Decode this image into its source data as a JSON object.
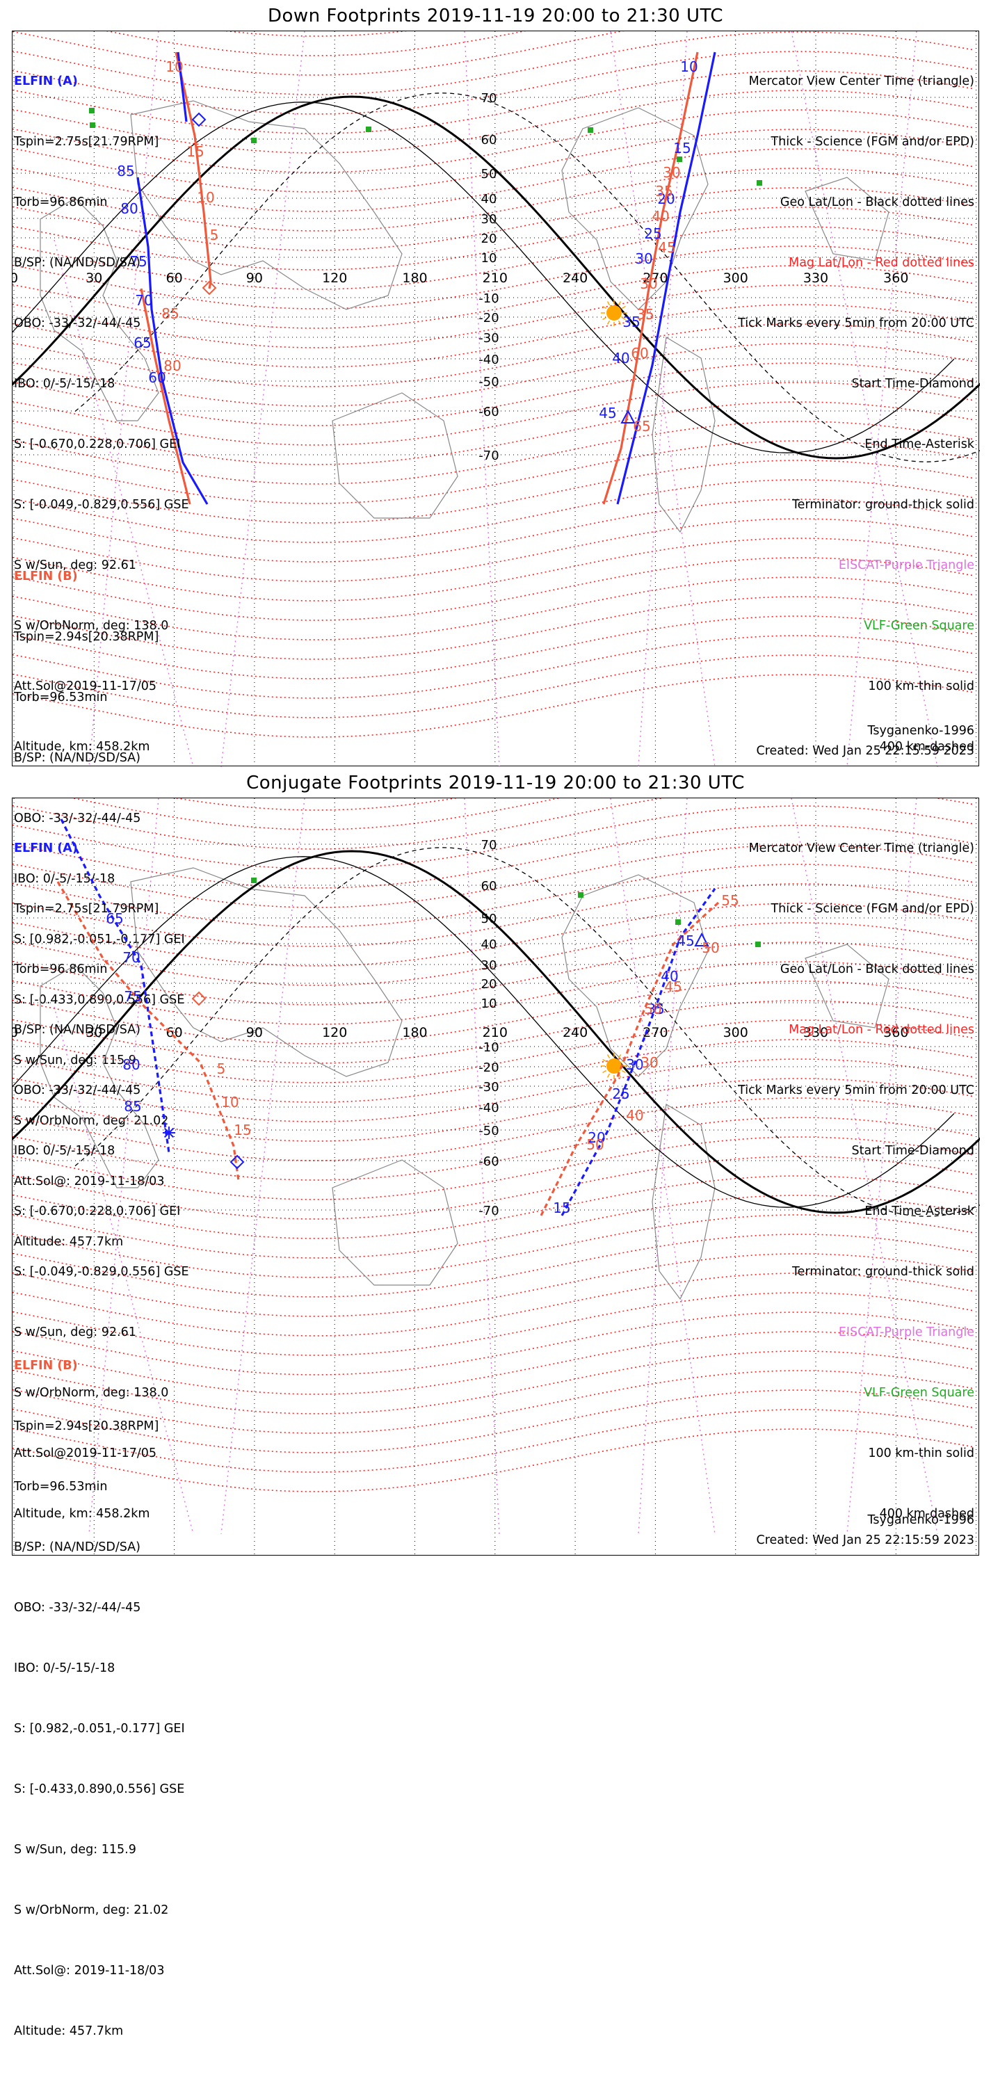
{
  "panels": [
    {
      "title": "Down Footprints 2019-11-19 20:00 to 21:30 UTC",
      "sc_a": {
        "name": "ELFIN (A)",
        "lines": [
          "Tspin=2.75s[21.79RPM]",
          "Torb=96.86min",
          "B/SP: (NA/ND/SD/SA)",
          "OBO: -33/-32/-44/-45",
          "IBO: 0/-5/-15/-18",
          "S: [-0.670,0.228,0.706] GEI",
          "S: [-0.049,-0.829,0.556] GSE",
          "S w/Sun, deg: 92.61",
          "S w/OrbNorm, deg: 138.0",
          "Att.Sol@2019-11-17/05",
          "Altitude, km: 458.2km"
        ]
      },
      "sc_b": {
        "name": "ELFIN (B)",
        "lines": [
          "Tspin=2.94s[20.38RPM]",
          "Torb=96.53min",
          "B/SP: (NA/ND/SD/SA)",
          "OBO: -33/-32/-44/-45",
          "IBO: 0/-5/-15/-18",
          "S: [0.982,-0.051,-0.177] GEI",
          "S: [-0.433,0.890,0.556] GSE",
          "S w/Sun, deg: 115.9",
          "S w/OrbNorm, deg: 21.02",
          "Att.Sol@: 2019-11-18/03",
          "Altitude: 457.7km"
        ]
      },
      "legend": [
        {
          "text": "Mercator View Center Time (triangle)",
          "color": "#000000"
        },
        {
          "text": "Thick - Science (FGM and/or EPD)",
          "color": "#000000"
        },
        {
          "text": "Geo Lat/Lon - Black dotted lines",
          "color": "#000000"
        },
        {
          "text": "Mag Lat/Lon - Red dotted lines",
          "color": "#ff2222"
        },
        {
          "text": "Tick Marks every 5min from 20:00 UTC",
          "color": "#000000"
        },
        {
          "text": "Start Time-Diamond",
          "color": "#000000"
        },
        {
          "text": "End Time-Asterisk",
          "color": "#000000"
        },
        {
          "text": "Terminator: ground-thick solid",
          "color": "#000000"
        },
        {
          "text": "EISCAT-Purple Triangle",
          "color": "#e070e0"
        },
        {
          "text": "VLF-Green Square",
          "color": "#22aa22"
        },
        {
          "text": "100 km-thin solid",
          "color": "#000000"
        },
        {
          "text": "400 km-dashed",
          "color": "#000000"
        }
      ],
      "model": "Tsyganenko-1996",
      "created": "Created: Wed Jan 25 22:15:59 2023",
      "lon_labels": [
        "0",
        "30",
        "60",
        "90",
        "120",
        "180",
        "210",
        "240",
        "270",
        "300",
        "330",
        "360"
      ],
      "lat_labels": [
        "70",
        "60",
        "50",
        "40",
        "30",
        "20",
        "10",
        "-10",
        "-20",
        "-30",
        "-40",
        "-50",
        "-60",
        "-70"
      ],
      "track_a_ticks": [
        "10",
        "15",
        "20",
        "25",
        "30",
        "35",
        "40",
        "45",
        "60",
        "65",
        "70",
        "75",
        "80",
        "85"
      ],
      "track_b_ticks": [
        "10",
        "15",
        "10",
        "5",
        "30",
        "35",
        "40",
        "45",
        "30",
        "35",
        "60",
        "65",
        "70",
        "75",
        "85",
        "80"
      ]
    },
    {
      "title": "Conjugate Footprints 2019-11-19 20:00 to 21:30 UTC",
      "sc_a": {
        "name": "ELFIN (A)",
        "lines": [
          "Tspin=2.75s[21.79RPM]",
          "Torb=96.86min",
          "B/SP: (NA/ND/SD/SA)",
          "OBO: -33/-32/-44/-45",
          "IBO: 0/-5/-15/-18",
          "S: [-0.670,0.228,0.706] GEI",
          "S: [-0.049,-0.829,0.556] GSE",
          "S w/Sun, deg: 92.61",
          "S w/OrbNorm, deg: 138.0",
          "Att.Sol@2019-11-17/05",
          "Altitude, km: 458.2km"
        ]
      },
      "sc_b": {
        "name": "ELFIN (B)",
        "lines": [
          "Tspin=2.94s[20.38RPM]",
          "Torb=96.53min",
          "B/SP: (NA/ND/SD/SA)",
          "OBO: -33/-32/-44/-45",
          "IBO: 0/-5/-15/-18",
          "S: [0.982,-0.051,-0.177] GEI",
          "S: [-0.433,0.890,0.556] GSE",
          "S w/Sun, deg: 115.9",
          "S w/OrbNorm, deg: 21.02",
          "Att.Sol@: 2019-11-18/03",
          "Altitude: 457.7km"
        ]
      },
      "legend": [
        {
          "text": "Mercator View Center Time (triangle)",
          "color": "#000000"
        },
        {
          "text": "Thick - Science (FGM and/or EPD)",
          "color": "#000000"
        },
        {
          "text": "Geo Lat/Lon - Black dotted lines",
          "color": "#000000"
        },
        {
          "text": "Mag Lat/Lon - Red dotted lines",
          "color": "#ff2222"
        },
        {
          "text": "Tick Marks every 5min from 20:00 UTC",
          "color": "#000000"
        },
        {
          "text": "Start Time-Diamond",
          "color": "#000000"
        },
        {
          "text": "End Time-Asterisk",
          "color": "#000000"
        },
        {
          "text": "Terminator: ground-thick solid",
          "color": "#000000"
        },
        {
          "text": "EISCAT-Purple Triangle",
          "color": "#e070e0"
        },
        {
          "text": "VLF-Green Square",
          "color": "#22aa22"
        },
        {
          "text": "100 km-thin solid",
          "color": "#000000"
        },
        {
          "text": "400 km-dashed",
          "color": "#000000"
        }
      ],
      "model": "Tsyganenko-1996",
      "created": "Created: Wed Jan 25 22:15:59 2023",
      "lon_labels": [
        "0",
        "30",
        "60",
        "90",
        "120",
        "180",
        "210",
        "240",
        "270",
        "300",
        "330",
        "360"
      ],
      "lat_labels": [
        "70",
        "60",
        "50",
        "40",
        "30",
        "20",
        "10",
        "-10",
        "-20",
        "-30",
        "-40",
        "-50",
        "-60",
        "-70"
      ]
    }
  ],
  "colors": {
    "sc_a": "#1a1aff",
    "sc_b": "#f05a3c",
    "mag_grid": "#ff2222",
    "eiscat": "#e070e0",
    "vlf": "#22aa22",
    "sun": "#ffa500"
  }
}
